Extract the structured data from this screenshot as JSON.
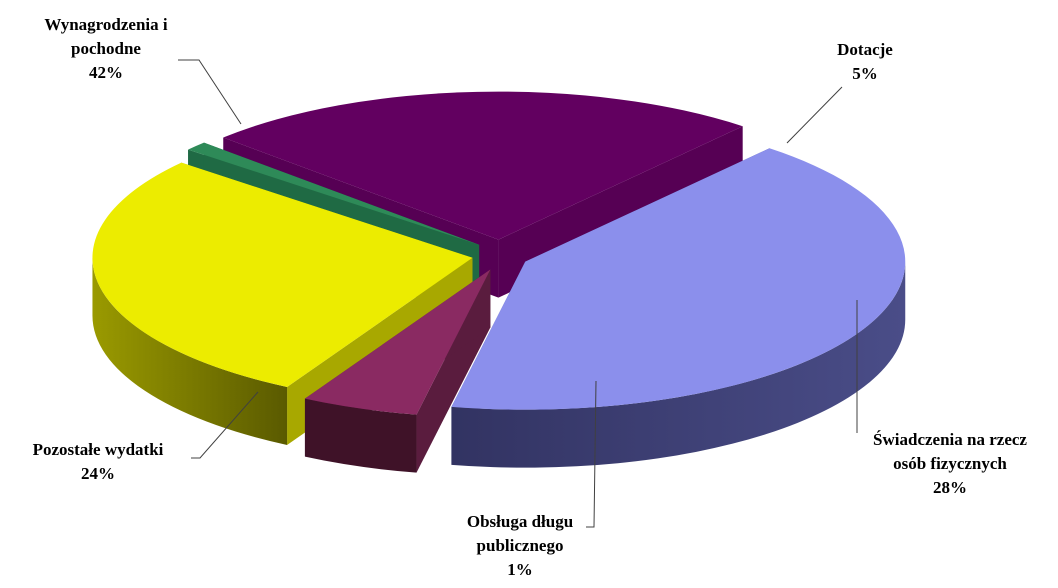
{
  "chart_data": {
    "type": "pie",
    "style": "3d-exploded",
    "slices": [
      {
        "label_lines": [
          "Wynagrodzenia i",
          "pochodne"
        ],
        "value": 42,
        "value_label": "42%",
        "colors": {
          "top": "#8b8fec",
          "side": "#3c3d72",
          "sideLight": "#525593"
        }
      },
      {
        "label_lines": [
          "Dotacje"
        ],
        "value": 5,
        "value_label": "5%",
        "colors": {
          "top": "#8a2a62",
          "side": "#3f1228",
          "sideLight": "#5a1c3e"
        }
      },
      {
        "label_lines": [
          "Świadczenia na rzecz",
          "osób fizycznych"
        ],
        "value": 28,
        "value_label": "28%",
        "colors": {
          "top": "#ecec00",
          "side": "#6e6e00",
          "sideLight": "#a8a800"
        }
      },
      {
        "label_lines": [
          "Obsługa długu",
          "publicznego"
        ],
        "value": 1,
        "value_label": "1%",
        "colors": {
          "top": "#2e8a58",
          "side": "#143d2a",
          "sideLight": "#1f6a44"
        }
      },
      {
        "label_lines": [
          "Pozostałe wydatki"
        ],
        "value": 24,
        "value_label": "24%",
        "colors": {
          "top": "#620060",
          "side": "#3e003c",
          "sideLight": "#560054"
        }
      }
    ]
  }
}
